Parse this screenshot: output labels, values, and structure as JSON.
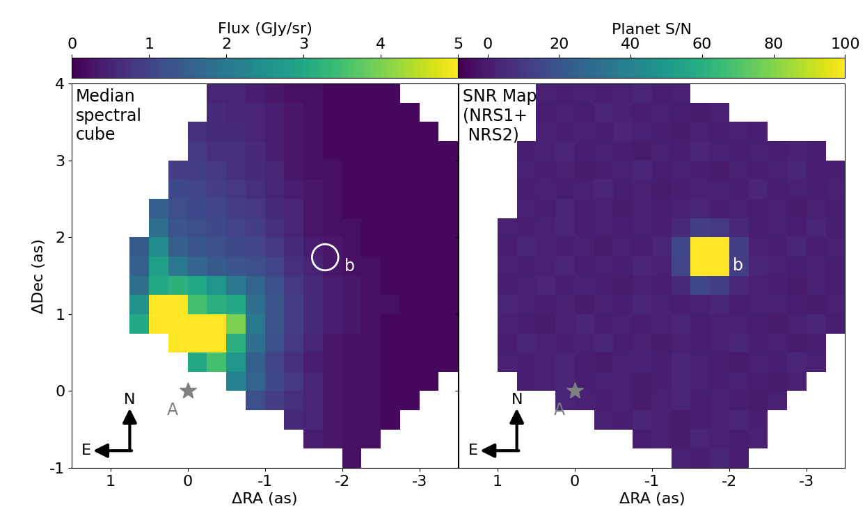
{
  "chart_data": [
    {
      "type": "heatmap",
      "annotation": "Median\nspectral\ncube",
      "xlabel": "ΔRA (as)",
      "ylabel": "ΔDec (as)",
      "xlim": [
        1.5,
        -3.5
      ],
      "ylim": [
        -1,
        4
      ],
      "xticks": [
        1,
        0,
        -1,
        -2,
        -3
      ],
      "yticks": [
        -1,
        0,
        1,
        2,
        3,
        4
      ],
      "colorbar": {
        "label": "Flux (GJy/sr)",
        "range": [
          0,
          5
        ],
        "ticks": [
          0,
          1,
          2,
          3,
          4,
          5
        ]
      },
      "star": {
        "label": "A",
        "x": 0,
        "y": 0
      },
      "planet": {
        "label": "b",
        "x": -1.78,
        "y": 1.74,
        "marker": "circle"
      },
      "compass": {
        "north": "N",
        "east": "E"
      },
      "x": [
        1.375,
        1.125,
        0.875,
        0.625,
        0.375,
        0.125,
        -0.125,
        -0.375,
        -0.625,
        -0.875,
        -1.125,
        -1.375,
        -1.625,
        -1.875,
        -2.125,
        -2.375,
        -2.625,
        -2.875,
        -3.125,
        -3.375
      ],
      "y": [
        -0.875,
        -0.625,
        -0.375,
        -0.125,
        0.125,
        0.375,
        0.625,
        0.875,
        1.125,
        1.375,
        1.625,
        1.875,
        2.125,
        2.375,
        2.625,
        2.875,
        3.125,
        3.375,
        3.625,
        3.875
      ],
      "values": [
        [
          null,
          null,
          null,
          null,
          null,
          null,
          null,
          null,
          null,
          null,
          null,
          null,
          null,
          null,
          0.2,
          null,
          null,
          null,
          null,
          null
        ],
        [
          null,
          null,
          null,
          null,
          null,
          null,
          null,
          null,
          null,
          null,
          null,
          null,
          0.4,
          0.3,
          0.2,
          0.2,
          null,
          null,
          null,
          null
        ],
        [
          null,
          null,
          null,
          null,
          null,
          null,
          null,
          null,
          null,
          null,
          null,
          0.6,
          0.5,
          0.3,
          0.2,
          0.2,
          0.1,
          null,
          null,
          null
        ],
        [
          null,
          null,
          null,
          null,
          null,
          null,
          null,
          null,
          null,
          1.2,
          0.9,
          0.7,
          0.5,
          0.3,
          0.2,
          0.2,
          0.1,
          0.1,
          null,
          null
        ],
        [
          null,
          null,
          null,
          null,
          null,
          null,
          null,
          null,
          2.2,
          1.6,
          1.1,
          0.8,
          0.5,
          0.3,
          0.2,
          0.2,
          0.1,
          0.1,
          0.1,
          null
        ],
        [
          null,
          null,
          null,
          null,
          null,
          null,
          3.0,
          3.5,
          2.6,
          1.5,
          1.0,
          0.7,
          0.4,
          0.3,
          0.2,
          0.2,
          0.1,
          0.1,
          0.1,
          0.1
        ],
        [
          null,
          null,
          null,
          null,
          null,
          6.0,
          6.0,
          6.0,
          3.2,
          1.8,
          1.2,
          0.8,
          0.5,
          0.3,
          0.2,
          0.2,
          0.1,
          0.1,
          0.1,
          0.1
        ],
        [
          null,
          null,
          null,
          3.0,
          6.0,
          6.0,
          5.5,
          6.0,
          4.0,
          2.0,
          1.3,
          0.9,
          0.6,
          0.4,
          0.3,
          0.2,
          0.1,
          0.1,
          0.1,
          0.1
        ],
        [
          null,
          null,
          null,
          2.5,
          6.0,
          6.0,
          3.5,
          3.2,
          3.0,
          1.8,
          1.3,
          0.9,
          0.6,
          0.4,
          0.3,
          0.2,
          0.2,
          0.1,
          0.1,
          0.1
        ],
        [
          null,
          null,
          null,
          1.8,
          3.0,
          3.2,
          3.0,
          2.6,
          2.0,
          1.6,
          1.2,
          0.8,
          0.6,
          0.4,
          0.3,
          0.2,
          0.1,
          0.1,
          0.1,
          0.1
        ],
        [
          null,
          null,
          null,
          1.5,
          2.8,
          2.0,
          1.6,
          1.4,
          1.3,
          1.2,
          1.0,
          0.7,
          0.5,
          0.3,
          0.2,
          0.2,
          0.1,
          0.1,
          0.1,
          0.1
        ],
        [
          null,
          null,
          null,
          1.4,
          2.4,
          1.5,
          1.3,
          1.2,
          1.1,
          1.0,
          0.8,
          0.6,
          0.4,
          0.3,
          0.2,
          0.1,
          0.1,
          0.1,
          0.1,
          0.1
        ],
        [
          null,
          null,
          null,
          null,
          1.8,
          1.3,
          1.2,
          1.1,
          1.0,
          0.9,
          0.7,
          0.5,
          0.3,
          0.2,
          0.2,
          0.1,
          0.1,
          0.1,
          0.1,
          0.1
        ],
        [
          null,
          null,
          null,
          null,
          1.5,
          1.2,
          1.1,
          1.0,
          0.9,
          0.8,
          0.6,
          0.5,
          0.3,
          0.2,
          0.1,
          0.1,
          0.1,
          0.1,
          0.1,
          0.1
        ],
        [
          null,
          null,
          null,
          null,
          null,
          1.1,
          1.0,
          0.9,
          0.8,
          0.7,
          0.5,
          0.4,
          0.3,
          0.2,
          0.1,
          0.1,
          0.1,
          0.1,
          0.1,
          0.1
        ],
        [
          null,
          null,
          null,
          null,
          null,
          0.9,
          0.9,
          0.8,
          0.7,
          0.6,
          0.5,
          0.3,
          0.2,
          0.2,
          0.1,
          0.1,
          0.1,
          0.1,
          0.1,
          0.1
        ],
        [
          null,
          null,
          null,
          null,
          null,
          null,
          0.8,
          0.7,
          0.7,
          0.6,
          0.4,
          0.3,
          0.2,
          0.1,
          0.1,
          0.1,
          0.1,
          0.1,
          0.1,
          0.1
        ],
        [
          null,
          null,
          null,
          null,
          null,
          null,
          0.7,
          0.6,
          0.6,
          0.5,
          0.4,
          0.3,
          0.2,
          0.1,
          0.1,
          0.1,
          0.1,
          0.1,
          0.1,
          null
        ],
        [
          null,
          null,
          null,
          null,
          null,
          null,
          null,
          0.6,
          0.5,
          0.5,
          0.4,
          0.3,
          0.2,
          0.1,
          0.1,
          0.1,
          0.1,
          0.1,
          null,
          null
        ],
        [
          null,
          null,
          null,
          null,
          null,
          null,
          null,
          0.5,
          0.5,
          0.4,
          0.3,
          0.2,
          0.2,
          0.1,
          0.1,
          0.1,
          0.1,
          null,
          null,
          null
        ]
      ]
    },
    {
      "type": "heatmap",
      "annotation": "SNR Map\n(NRS1+\n NRS2)",
      "xlabel": "ΔRA (as)",
      "xlim": [
        1.5,
        -3.5
      ],
      "ylim": [
        -1,
        4
      ],
      "xticks": [
        1,
        0,
        -1,
        -2,
        -3
      ],
      "yticks": [
        -1,
        0,
        1,
        2,
        3,
        4
      ],
      "tick_labels": "x",
      "colorbar": {
        "label": "Planet S/N",
        "range": [
          -8,
          100
        ],
        "ticks": [
          0,
          20,
          40,
          60,
          80,
          100
        ]
      },
      "star": {
        "label": "A",
        "x": 0,
        "y": 0
      },
      "planet": {
        "label": "b",
        "x": -1.79,
        "y": 1.75
      },
      "compass": {
        "north": "N",
        "east": "E"
      },
      "x": [
        1.375,
        1.125,
        0.875,
        0.625,
        0.375,
        0.125,
        -0.125,
        -0.375,
        -0.625,
        -0.875,
        -1.125,
        -1.375,
        -1.625,
        -1.875,
        -2.125,
        -2.375,
        -2.625,
        -2.875,
        -3.125,
        -3.375
      ],
      "y": [
        -0.875,
        -0.625,
        -0.375,
        -0.125,
        0.125,
        0.375,
        0.625,
        0.875,
        1.125,
        1.375,
        1.625,
        1.875,
        2.125,
        2.375,
        2.625,
        2.875,
        3.125,
        3.375,
        3.625,
        3.875
      ],
      "values": [
        [
          null,
          null,
          null,
          null,
          null,
          null,
          null,
          null,
          null,
          null,
          null,
          2,
          1,
          3,
          1,
          null,
          null,
          null,
          null,
          null
        ],
        [
          null,
          null,
          null,
          null,
          null,
          null,
          null,
          null,
          null,
          1,
          2,
          0,
          3,
          2,
          1,
          2,
          null,
          null,
          null,
          null
        ],
        [
          null,
          null,
          null,
          null,
          null,
          null,
          null,
          2,
          1,
          3,
          2,
          0,
          1,
          2,
          3,
          1,
          null,
          null,
          null,
          null
        ],
        [
          null,
          null,
          null,
          null,
          null,
          3,
          2,
          1,
          2,
          0,
          2,
          3,
          1,
          2,
          1,
          0,
          2,
          null,
          null,
          null
        ],
        [
          null,
          null,
          null,
          1,
          2,
          3,
          1,
          2,
          2,
          0,
          1,
          3,
          2,
          1,
          2,
          1,
          0,
          2,
          null,
          null
        ],
        [
          null,
          null,
          2,
          1,
          2,
          3,
          1,
          0,
          2,
          2,
          1,
          3,
          2,
          1,
          0,
          2,
          1,
          3,
          2,
          null
        ],
        [
          null,
          null,
          1,
          3,
          2,
          1,
          2,
          3,
          1,
          2,
          0,
          2,
          1,
          2,
          3,
          1,
          2,
          0,
          1,
          null
        ],
        [
          null,
          null,
          2,
          1,
          0,
          2,
          3,
          1,
          2,
          1,
          2,
          3,
          1,
          2,
          2,
          1,
          0,
          2,
          3,
          1
        ],
        [
          null,
          null,
          3,
          2,
          1,
          2,
          0,
          2,
          1,
          3,
          2,
          1,
          2,
          3,
          1,
          2,
          2,
          1,
          0,
          2
        ],
        [
          null,
          null,
          1,
          2,
          3,
          1,
          2,
          1,
          0,
          2,
          1,
          4,
          15,
          12,
          4,
          2,
          1,
          0,
          2,
          1
        ],
        [
          null,
          null,
          2,
          1,
          2,
          3,
          1,
          2,
          1,
          3,
          2,
          14,
          105,
          100,
          12,
          3,
          2,
          1,
          2,
          1
        ],
        [
          null,
          null,
          1,
          3,
          2,
          1,
          2,
          0,
          2,
          1,
          3,
          15,
          110,
          105,
          12,
          2,
          1,
          3,
          1,
          2
        ],
        [
          null,
          null,
          2,
          1,
          2,
          3,
          1,
          2,
          1,
          2,
          1,
          4,
          12,
          10,
          4,
          1,
          2,
          1,
          3,
          1
        ],
        [
          null,
          null,
          null,
          2,
          1,
          3,
          1,
          2,
          0,
          2,
          1,
          2,
          3,
          1,
          2,
          1,
          2,
          0,
          2,
          1
        ],
        [
          null,
          null,
          null,
          1,
          2,
          1,
          2,
          3,
          1,
          2,
          0,
          1,
          2,
          2,
          1,
          3,
          1,
          2,
          1,
          2
        ],
        [
          null,
          null,
          null,
          2,
          1,
          2,
          0,
          1,
          2,
          3,
          1,
          2,
          1,
          0,
          2,
          1,
          2,
          3,
          1,
          1
        ],
        [
          null,
          null,
          null,
          1,
          2,
          3,
          1,
          2,
          1,
          0,
          2,
          1,
          3,
          2,
          1,
          2,
          1,
          2,
          1,
          null
        ],
        [
          null,
          null,
          null,
          null,
          2,
          1,
          2,
          1,
          3,
          2,
          1,
          0,
          2,
          1,
          2,
          1,
          null,
          null,
          null,
          null
        ],
        [
          null,
          null,
          null,
          null,
          1,
          2,
          1,
          3,
          2,
          1,
          2,
          1,
          0,
          2,
          null,
          null,
          null,
          null,
          null,
          null
        ],
        [
          null,
          null,
          null,
          null,
          2,
          1,
          2,
          1,
          2,
          3,
          1,
          2,
          null,
          null,
          null,
          null,
          null,
          null,
          null,
          null
        ]
      ]
    }
  ]
}
